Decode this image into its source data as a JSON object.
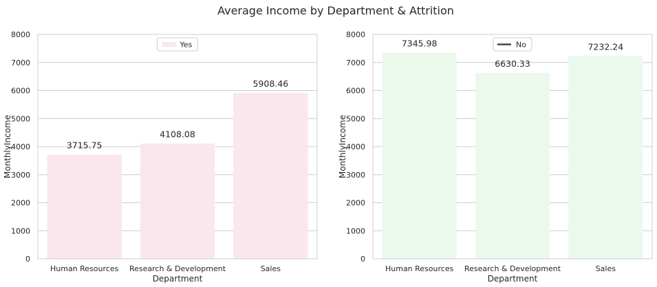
{
  "figure_title": "Average Income by Department & Attrition",
  "colors": {
    "yes_bar": "#fae6ec",
    "no_bar": "#eaf9ec",
    "grid": "#cccccc",
    "spine": "#cccccc",
    "text": "#262626",
    "legend_line": "#444444"
  },
  "chart_data": [
    {
      "type": "bar",
      "categories": [
        "Human Resources",
        "Research & Development",
        "Sales"
      ],
      "series": [
        {
          "name": "Yes",
          "values": [
            3715.75,
            4108.08,
            5908.46
          ]
        }
      ],
      "value_labels": [
        "3715.75",
        "4108.08",
        "5908.46"
      ],
      "xlabel": "Department",
      "ylabel": "MonthlyIncome",
      "ylim": [
        0,
        8000
      ],
      "yticks": [
        0,
        1000,
        2000,
        3000,
        4000,
        5000,
        6000,
        7000,
        8000
      ],
      "grid": true,
      "legend": {
        "label": "Yes",
        "marker": "patch",
        "placement": "top-center"
      }
    },
    {
      "type": "bar",
      "categories": [
        "Human Resources",
        "Research & Development",
        "Sales"
      ],
      "series": [
        {
          "name": "No",
          "values": [
            7345.98,
            6630.33,
            7232.24
          ]
        }
      ],
      "value_labels": [
        "7345.98",
        "6630.33",
        "7232.24"
      ],
      "xlabel": "Department",
      "ylabel": "MonthlyIncome",
      "ylim": [
        0,
        8000
      ],
      "yticks": [
        0,
        1000,
        2000,
        3000,
        4000,
        5000,
        6000,
        7000,
        8000
      ],
      "grid": true,
      "legend": {
        "label": "No",
        "marker": "line",
        "placement": "top-center"
      }
    }
  ]
}
